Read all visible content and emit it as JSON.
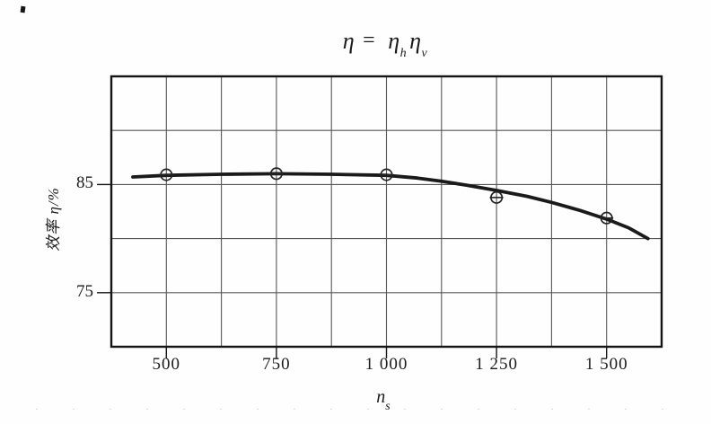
{
  "title": {
    "lhs": "η",
    "equals": "=",
    "term1_base": "η",
    "term1_sub": "h",
    "term2_base": "η",
    "term2_sub": "v"
  },
  "axes": {
    "y": {
      "label": "效率 η/%",
      "tick_labels": [
        "85",
        "75"
      ]
    },
    "x": {
      "label_base": "n",
      "label_sub": "s",
      "tick_labels": [
        "500",
        "750",
        "1 000",
        "1 250",
        "1 500"
      ]
    }
  },
  "chart_data": {
    "type": "line",
    "title": "η = ηhηv",
    "xlabel": "ns",
    "ylabel": "效率 η/%",
    "xlim": [
      375,
      1625
    ],
    "ylim": [
      70,
      95
    ],
    "x_gridline_step": 125,
    "y_gridline_step": 5,
    "grid": true,
    "legend": false,
    "x_ticks": [
      500,
      750,
      1000,
      1250,
      1500
    ],
    "x_tick_labels": [
      "500",
      "750",
      "1 000",
      "1 250",
      "1 500"
    ],
    "y_ticks": [
      85,
      75
    ],
    "y_tick_labels": [
      "85",
      "75"
    ],
    "series": [
      {
        "name": "efficiency-curve",
        "type": "line",
        "points": [
          [
            424,
            85.7
          ],
          [
            500,
            85.85
          ],
          [
            625,
            85.95
          ],
          [
            750,
            86.0
          ],
          [
            875,
            85.95
          ],
          [
            1000,
            85.85
          ],
          [
            1070,
            85.6
          ],
          [
            1125,
            85.3
          ],
          [
            1180,
            84.95
          ],
          [
            1250,
            84.45
          ],
          [
            1320,
            83.9
          ],
          [
            1375,
            83.35
          ],
          [
            1440,
            82.6
          ],
          [
            1500,
            81.8
          ],
          [
            1550,
            81.0
          ],
          [
            1594,
            80.0
          ]
        ]
      },
      {
        "name": "test-points",
        "type": "scatter",
        "marker": "circle-dash",
        "points": [
          [
            500,
            85.9
          ],
          [
            750,
            86.0
          ],
          [
            1000,
            85.9
          ],
          [
            1250,
            83.8
          ],
          [
            1500,
            81.9
          ]
        ]
      }
    ],
    "colors": {
      "curve": "#1a1a1a",
      "grid": "#565656",
      "border": "#141414",
      "text": "#1c1c1c",
      "background": "#fefefe"
    }
  }
}
